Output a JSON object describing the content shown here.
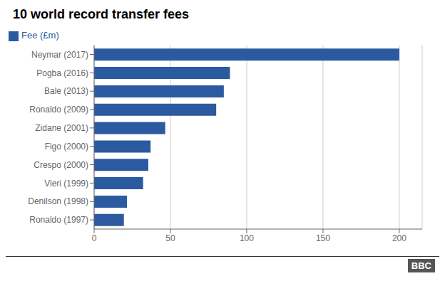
{
  "chart_data": {
    "type": "bar",
    "title": "10 world record transfer fees",
    "orientation": "horizontal",
    "categories": [
      "Neymar (2017)",
      "Pogba (2016)",
      "Bale (2013)",
      "Ronaldo (2009)",
      "Zidane (2001)",
      "Figo (2000)",
      "Crespo (2000)",
      "Vieri (1999)",
      "Denilson (1998)",
      "Ronaldo (1997)"
    ],
    "series": [
      {
        "name": "Fee (£m)",
        "color": "#2c5aa0",
        "values": [
          200,
          89,
          85,
          80,
          46.6,
          37,
          35.5,
          32.1,
          21.5,
          19.5
        ]
      }
    ],
    "xlim": [
      0,
      215
    ],
    "xticks": [
      0,
      50,
      100,
      150,
      200
    ],
    "grid": true,
    "legend": "upper left",
    "annotations": [
      "BBC"
    ]
  }
}
